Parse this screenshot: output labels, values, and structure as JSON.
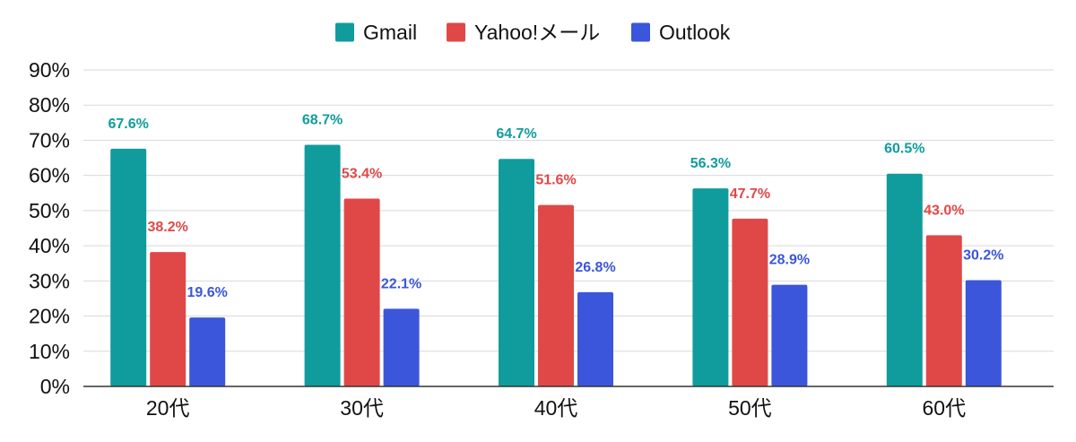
{
  "chart_data": {
    "type": "bar",
    "title": "",
    "xlabel": "",
    "ylabel": "",
    "categories": [
      "20代",
      "30代",
      "40代",
      "50代",
      "60代"
    ],
    "series": [
      {
        "name": "Gmail",
        "color": "#109c9c",
        "values": [
          67.6,
          68.7,
          64.7,
          56.3,
          60.5
        ],
        "labels": [
          "67.6%",
          "68.7%",
          "64.7%",
          "56.3%",
          "60.5%"
        ]
      },
      {
        "name": "Yahoo!メール",
        "color": "#e04848",
        "values": [
          38.2,
          53.4,
          51.6,
          47.7,
          43.0
        ],
        "labels": [
          "38.2%",
          "53.4%",
          "51.6%",
          "47.7%",
          "43.0%"
        ]
      },
      {
        "name": "Outlook",
        "color": "#3b56db",
        "values": [
          19.6,
          22.1,
          26.8,
          28.9,
          30.2
        ],
        "labels": [
          "19.6%",
          "22.1%",
          "26.8%",
          "28.9%",
          "30.2%"
        ]
      }
    ],
    "ylim": [
      0,
      90
    ],
    "yticks": [
      "0%",
      "10%",
      "20%",
      "30%",
      "40%",
      "50%",
      "60%",
      "70%",
      "80%",
      "90%"
    ],
    "grid": true,
    "legend_position": "top-center"
  }
}
